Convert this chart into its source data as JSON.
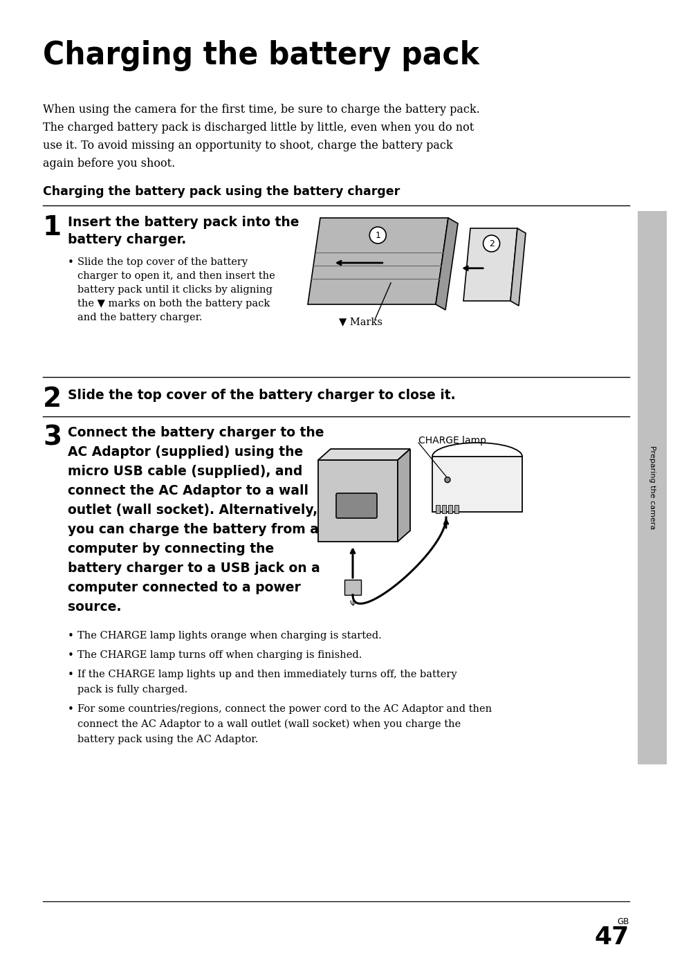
{
  "title": "Charging the battery pack",
  "bg_color": "#ffffff",
  "text_color": "#000000",
  "page_number": "47",
  "sidebar_text": "Preparing the camera",
  "intro_lines": [
    "When using the camera for the first time, be sure to charge the battery pack.",
    "The charged battery pack is discharged little by little, even when you do not",
    "use it. To avoid missing an opportunity to shoot, charge the battery pack",
    "again before you shoot."
  ],
  "section_heading": "Charging the battery pack using the battery charger",
  "step1_heading_lines": [
    "Insert the battery pack into the",
    "battery charger."
  ],
  "step1_bullet_lines": [
    "Slide the top cover of the battery",
    "charger to open it, and then insert the",
    "battery pack until it clicks by aligning",
    "the ▼ marks on both the battery pack",
    "and the battery charger."
  ],
  "step2_heading": "Slide the top cover of the battery charger to close it.",
  "step3_heading_lines": [
    "Connect the battery charger to the",
    "AC Adaptor (supplied) using the",
    "micro USB cable (supplied), and",
    "connect the AC Adaptor to a wall",
    "outlet (wall socket). Alternatively,",
    "you can charge the battery from a",
    "computer by connecting the",
    "battery charger to a USB jack on a",
    "computer connected to a power",
    "source."
  ],
  "step3_bullet_groups": [
    [
      "The CHARGE lamp lights orange when charging is started."
    ],
    [
      "The CHARGE lamp turns off when charging is finished."
    ],
    [
      "If the CHARGE lamp lights up and then immediately turns off, the battery",
      "pack is fully charged."
    ],
    [
      "For some countries/regions, connect the power cord to the AC Adaptor and then",
      "connect the AC Adaptor to a wall outlet (wall socket) when you charge the",
      "battery pack using the AC Adaptor."
    ]
  ],
  "marks_label": "▼ Marks",
  "charge_lamp_label": "CHARGE lamp"
}
